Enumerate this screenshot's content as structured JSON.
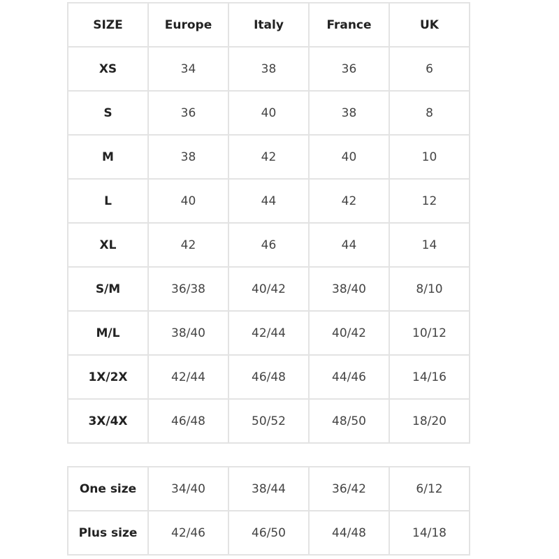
{
  "main_table": {
    "headers": [
      "SIZE",
      "Europe",
      "Italy",
      "France",
      "UK"
    ],
    "rows": [
      [
        "XS",
        "34",
        "38",
        "36",
        "6"
      ],
      [
        "S",
        "36",
        "40",
        "38",
        "8"
      ],
      [
        "M",
        "38",
        "42",
        "40",
        "10"
      ],
      [
        "L",
        "40",
        "44",
        "42",
        "12"
      ],
      [
        "XL",
        "42",
        "46",
        "44",
        "14"
      ],
      [
        "S/M",
        "36/38",
        "40/42",
        "38/40",
        "8/10"
      ],
      [
        "M/L",
        "38/40",
        "42/44",
        "40/42",
        "10/12"
      ],
      [
        "1X/2X",
        "42/44",
        "46/48",
        "44/46",
        "14/16"
      ],
      [
        "3X/4X",
        "46/48",
        "50/52",
        "48/50",
        "18/20"
      ]
    ]
  },
  "special_table": {
    "rows": [
      [
        "One size",
        "34/40",
        "38/44",
        "36/42",
        "6/12"
      ],
      [
        "Plus size",
        "42/46",
        "46/50",
        "44/48",
        "14/18"
      ]
    ]
  }
}
